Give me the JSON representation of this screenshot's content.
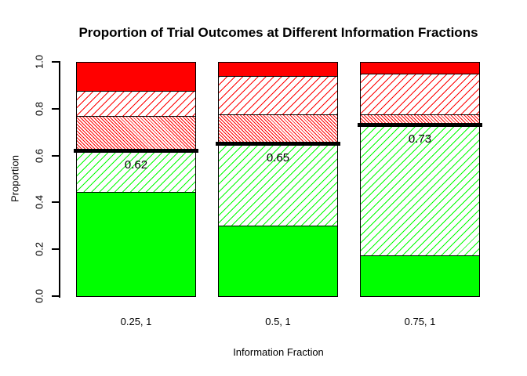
{
  "chart_data": {
    "type": "bar",
    "stacked": true,
    "title": "Proportion of Trial Outcomes at Different Information Fractions",
    "xlabel": "Information Fraction",
    "ylabel": "Proportion",
    "ylim": [
      0,
      1
    ],
    "grid": false,
    "legend": "none",
    "ytick_labels": [
      "0.0",
      "0.2",
      "0.4",
      "0.6",
      "0.8",
      "1.0"
    ],
    "categories": [
      "0.25, 1",
      "0.5, 1",
      "0.75, 1"
    ],
    "series": [
      {
        "name": "solid-green",
        "color": "#00FF00",
        "pattern": "solid",
        "values": [
          0.445,
          0.3,
          0.175
        ]
      },
      {
        "name": "green-hatched",
        "color": "#00FF00",
        "pattern": "diagonal-hatch",
        "values": [
          0.175,
          0.35,
          0.555
        ]
      },
      {
        "name": "red-dense-hatched",
        "color": "#FF0000",
        "pattern": "dense-back-hatch",
        "values": [
          0.15,
          0.125,
          0.045
        ]
      },
      {
        "name": "red-hatched",
        "color": "#FF0000",
        "pattern": "diagonal-hatch",
        "values": [
          0.105,
          0.165,
          0.175
        ]
      },
      {
        "name": "solid-red",
        "color": "#FF0000",
        "pattern": "solid",
        "values": [
          0.125,
          0.06,
          0.05
        ]
      }
    ],
    "threshold_annotations": [
      {
        "category": "0.25, 1",
        "value": 0.62,
        "label": "0.62"
      },
      {
        "category": "0.5, 1",
        "value": 0.65,
        "label": "0.65"
      },
      {
        "category": "0.75, 1",
        "value": 0.73,
        "label": "0.73"
      }
    ],
    "colors": {
      "green": "#00FF00",
      "red": "#FF0000",
      "threshold_line": "#000000",
      "text": "#000000"
    }
  }
}
